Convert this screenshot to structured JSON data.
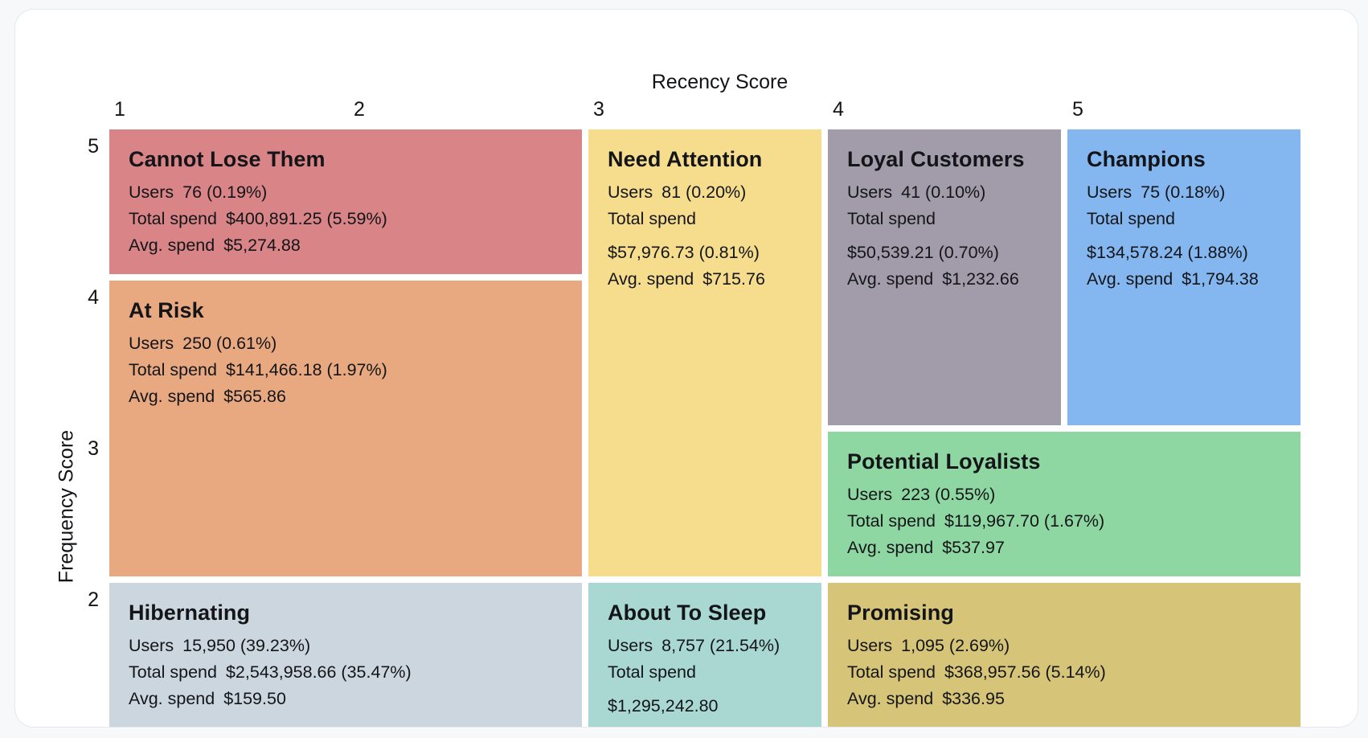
{
  "chart_data": {
    "type": "heatmap",
    "subtype": "rfm-segment-grid",
    "xlabel": "Recency Score",
    "ylabel": "Frequency Score",
    "x_ticks": [
      "1",
      "2",
      "3",
      "4",
      "5"
    ],
    "y_ticks": [
      "5",
      "4",
      "3",
      "2"
    ],
    "x_range": [
      1,
      5
    ],
    "y_range_visible": [
      2,
      5
    ],
    "grid": false,
    "legend": "none",
    "stat_labels": {
      "users": "Users",
      "total_spend": "Total spend",
      "avg_spend": "Avg. spend"
    },
    "segments": [
      {
        "name": "Cannot Lose Them",
        "color": "#d98487",
        "recency": [
          1,
          2
        ],
        "frequency": [
          5,
          5
        ],
        "total_on_own_line": false,
        "stats": {
          "users": "76 (0.19%)",
          "total_spend": "$400,891.25 (5.59%)",
          "avg_spend": "$5,274.88"
        }
      },
      {
        "name": "Need Attention",
        "color": "#f6dc8d",
        "recency": [
          3,
          3
        ],
        "frequency": [
          3,
          5
        ],
        "total_on_own_line": true,
        "stats": {
          "users": "81 (0.20%)",
          "total_spend": "$57,976.73 (0.81%)",
          "avg_spend": "$715.76"
        }
      },
      {
        "name": "Loyal Customers",
        "color": "#a29ba9",
        "recency": [
          4,
          4
        ],
        "frequency": [
          4,
          5
        ],
        "total_on_own_line": true,
        "stats": {
          "users": "41 (0.10%)",
          "total_spend": "$50,539.21 (0.70%)",
          "avg_spend": "$1,232.66"
        }
      },
      {
        "name": "Champions",
        "color": "#84b6f0",
        "recency": [
          5,
          5
        ],
        "frequency": [
          4,
          5
        ],
        "total_on_own_line": true,
        "stats": {
          "users": "75 (0.18%)",
          "total_spend": "$134,578.24 (1.88%)",
          "avg_spend": "$1,794.38"
        }
      },
      {
        "name": "At Risk",
        "color": "#e9a980",
        "recency": [
          1,
          2
        ],
        "frequency": [
          3,
          4
        ],
        "total_on_own_line": false,
        "stats": {
          "users": "250 (0.61%)",
          "total_spend": "$141,466.18 (1.97%)",
          "avg_spend": "$565.86"
        }
      },
      {
        "name": "Potential Loyalists",
        "color": "#8fd7a2",
        "recency": [
          4,
          5
        ],
        "frequency": [
          3,
          3
        ],
        "total_on_own_line": false,
        "stats": {
          "users": "223 (0.55%)",
          "total_spend": "$119,967.70 (1.67%)",
          "avg_spend": "$537.97"
        }
      },
      {
        "name": "Hibernating",
        "color": "#ccd6df",
        "recency": [
          1,
          2
        ],
        "frequency": [
          2,
          2
        ],
        "total_on_own_line": false,
        "stats": {
          "users": "15,950 (39.23%)",
          "total_spend": "$2,543,958.66 (35.47%)",
          "avg_spend": "$159.50"
        }
      },
      {
        "name": "About To Sleep",
        "color": "#a9d8d3",
        "recency": [
          3,
          3
        ],
        "frequency": [
          2,
          2
        ],
        "total_on_own_line": true,
        "stats": {
          "users": "8,757 (21.54%)",
          "total_spend": "$1,295,242.80"
        }
      },
      {
        "name": "Promising",
        "color": "#d6c578",
        "recency": [
          4,
          5
        ],
        "frequency": [
          2,
          2
        ],
        "total_on_own_line": false,
        "stats": {
          "users": "1,095 (2.69%)",
          "total_spend": "$368,957.56 (5.14%)",
          "avg_spend": "$336.95"
        }
      }
    ]
  }
}
